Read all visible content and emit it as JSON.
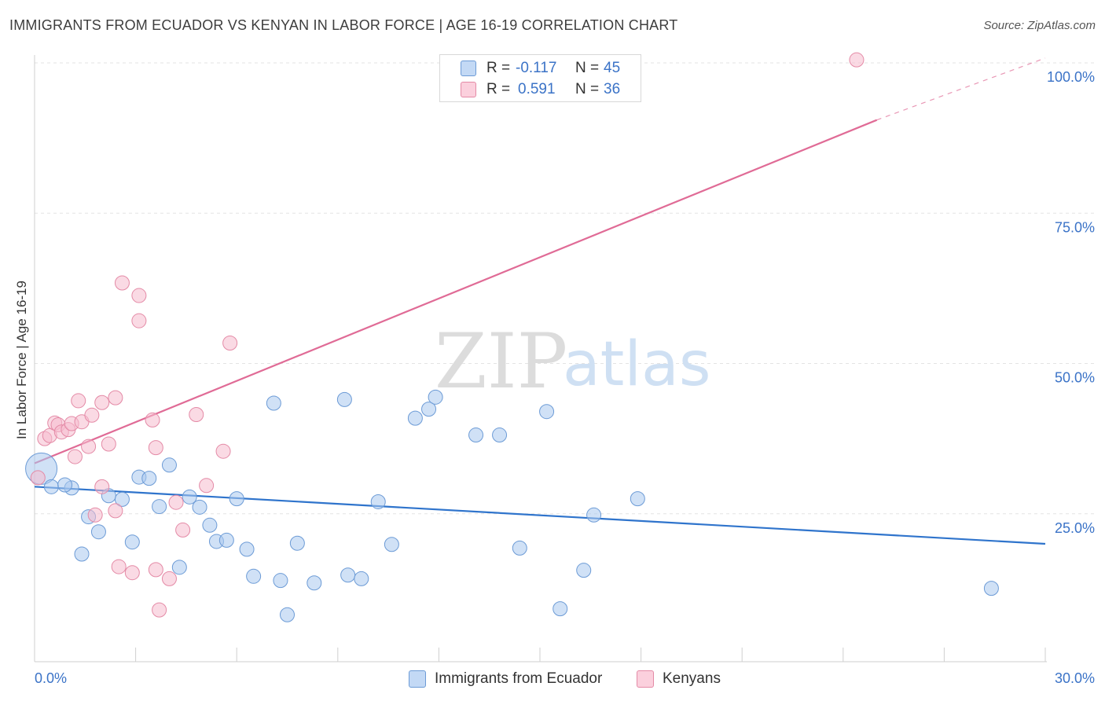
{
  "title": "IMMIGRANTS FROM ECUADOR VS KENYAN IN LABOR FORCE | AGE 16-19 CORRELATION CHART",
  "source": "Source: ZipAtlas.com",
  "watermark": {
    "zip": "ZIP",
    "atlas": "atlas"
  },
  "colors": {
    "blue_fill": "#a9c8ef",
    "blue_stroke": "#6c9bd6",
    "blue_line": "#2f74cc",
    "pink_fill": "#f6bccd",
    "pink_stroke": "#e48aa6",
    "pink_line": "#e06b96",
    "tick_text": "#3b73c7",
    "grid": "#e3e3e3"
  },
  "stats": {
    "r_label": "R =",
    "n_label": "N =",
    "rows": [
      {
        "r": "-0.117",
        "n": "45"
      },
      {
        "r": "0.591",
        "n": "36"
      }
    ]
  },
  "legend": [
    "Immigrants from Ecuador",
    "Kenyans"
  ],
  "chart_data": {
    "type": "scatter",
    "title": "IMMIGRANTS FROM ECUADOR VS KENYAN IN LABOR FORCE | AGE 16-19 CORRELATION CHART",
    "xlabel": "",
    "ylabel": "In Labor Force | Age 16-19",
    "xlim": [
      0,
      30
    ],
    "ylim": [
      0,
      100
    ],
    "x_tick_labels": [
      "0.0%",
      "30.0%"
    ],
    "y_ticks": [
      25,
      50,
      75,
      100
    ],
    "y_tick_labels": [
      "25.0%",
      "50.0%",
      "75.0%",
      "100.0%"
    ],
    "grid": true,
    "series": [
      {
        "name": "Immigrants from Ecuador",
        "color": "blue",
        "trend": {
          "x0": 0,
          "y0": 29.5,
          "x1": 30,
          "y1": 20.0,
          "dashed_to": null
        },
        "points": [
          [
            0.2,
            32.5,
            20
          ],
          [
            0.5,
            29.5,
            9
          ],
          [
            1.1,
            29.3,
            9
          ],
          [
            0.9,
            29.8,
            9
          ],
          [
            1.6,
            24.5,
            9
          ],
          [
            1.9,
            22.0,
            9
          ],
          [
            1.4,
            18.3,
            9
          ],
          [
            2.2,
            28.0,
            9
          ],
          [
            2.6,
            27.4,
            9
          ],
          [
            2.9,
            20.3,
            9
          ],
          [
            3.1,
            31.1,
            9
          ],
          [
            3.4,
            30.9,
            9
          ],
          [
            3.7,
            26.2,
            9
          ],
          [
            4.0,
            33.1,
            9
          ],
          [
            4.3,
            16.1,
            9
          ],
          [
            4.6,
            27.8,
            9
          ],
          [
            4.9,
            26.1,
            9
          ],
          [
            5.2,
            23.1,
            9
          ],
          [
            5.4,
            20.4,
            9
          ],
          [
            5.7,
            20.6,
            9
          ],
          [
            6.0,
            27.5,
            9
          ],
          [
            6.3,
            19.1,
            9
          ],
          [
            7.1,
            43.4,
            9
          ],
          [
            7.3,
            13.9,
            9
          ],
          [
            6.5,
            14.6,
            9
          ],
          [
            7.5,
            8.2,
            9
          ],
          [
            7.8,
            20.1,
            9
          ],
          [
            8.3,
            13.5,
            9
          ],
          [
            9.2,
            44.0,
            9
          ],
          [
            9.3,
            14.8,
            9
          ],
          [
            9.7,
            14.2,
            9
          ],
          [
            10.2,
            27.0,
            9
          ],
          [
            10.6,
            19.9,
            9
          ],
          [
            11.3,
            40.9,
            9
          ],
          [
            11.7,
            42.4,
            9
          ],
          [
            11.9,
            44.4,
            9
          ],
          [
            13.1,
            38.1,
            9
          ],
          [
            13.8,
            38.1,
            9
          ],
          [
            14.4,
            19.3,
            9
          ],
          [
            15.2,
            42.0,
            9
          ],
          [
            15.6,
            9.2,
            9
          ],
          [
            16.3,
            15.6,
            9
          ],
          [
            16.6,
            24.8,
            9
          ],
          [
            17.9,
            27.5,
            9
          ],
          [
            28.4,
            12.6,
            9
          ]
        ]
      },
      {
        "name": "Kenyans",
        "color": "pink",
        "trend": {
          "x0": 0,
          "y0": 33.4,
          "x1": 25.0,
          "y1": 90.5,
          "dashed_to": [
            30,
            100.8
          ]
        },
        "points": [
          [
            0.1,
            31.0,
            9
          ],
          [
            0.3,
            37.5,
            9
          ],
          [
            0.45,
            38.0,
            9
          ],
          [
            0.6,
            40.1,
            9
          ],
          [
            0.7,
            39.8,
            9
          ],
          [
            0.8,
            38.6,
            9
          ],
          [
            1.0,
            39.0,
            9
          ],
          [
            1.1,
            40.0,
            9
          ],
          [
            1.2,
            34.5,
            9
          ],
          [
            1.3,
            43.8,
            9
          ],
          [
            1.4,
            40.3,
            9
          ],
          [
            1.6,
            36.2,
            9
          ],
          [
            1.7,
            41.4,
            9
          ],
          [
            1.8,
            24.8,
            9
          ],
          [
            2.0,
            29.5,
            9
          ],
          [
            2.0,
            43.5,
            9
          ],
          [
            2.2,
            36.6,
            9
          ],
          [
            2.4,
            44.3,
            9
          ],
          [
            2.4,
            25.5,
            9
          ],
          [
            2.5,
            16.2,
            9
          ],
          [
            2.6,
            63.4,
            9
          ],
          [
            2.9,
            15.2,
            9
          ],
          [
            3.1,
            61.3,
            9
          ],
          [
            3.1,
            57.1,
            9
          ],
          [
            3.5,
            40.6,
            9
          ],
          [
            3.6,
            36.0,
            9
          ],
          [
            3.7,
            9.0,
            9
          ],
          [
            3.6,
            15.7,
            9
          ],
          [
            4.0,
            14.2,
            9
          ],
          [
            4.2,
            26.9,
            9
          ],
          [
            4.4,
            22.3,
            9
          ],
          [
            4.8,
            41.5,
            9
          ],
          [
            5.1,
            29.7,
            9
          ],
          [
            5.6,
            35.4,
            9
          ],
          [
            5.8,
            53.4,
            9
          ],
          [
            24.4,
            100.5,
            9
          ]
        ]
      }
    ]
  }
}
